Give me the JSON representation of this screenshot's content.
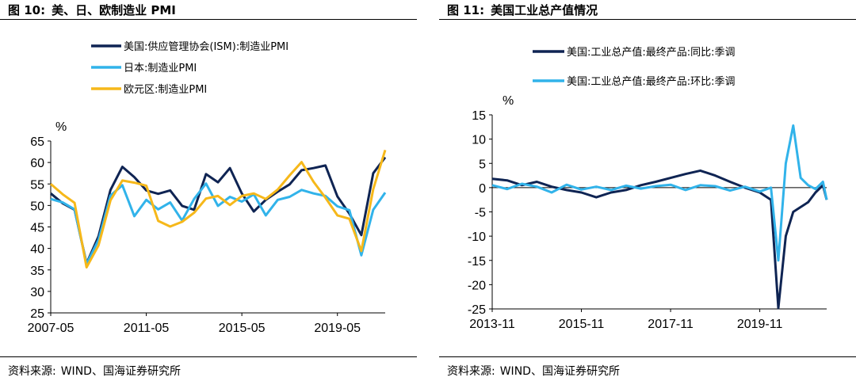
{
  "left": {
    "figure_no": "图 10:",
    "title": "美、日、欧制造业 PMI",
    "source_label": "资料来源:",
    "source_text": "WIND、国海证券研究所"
  },
  "right": {
    "figure_no": "图 11:",
    "title": "美国工业总产值情况",
    "source_label": "资料来源:",
    "source_text": "WIND、国海证券研究所"
  },
  "chart_data": [
    {
      "type": "line",
      "title": "美、日、欧制造业 PMI",
      "ylabel": "%",
      "ylim": [
        25,
        65
      ],
      "yticks": [
        25,
        30,
        35,
        40,
        45,
        50,
        55,
        60,
        65
      ],
      "xlim": [
        "2007-05",
        "2021-05"
      ],
      "xtick_labels": [
        "2007-05",
        "2011-05",
        "2015-05",
        "2019-05"
      ],
      "colors": {
        "us": "#0f2453",
        "japan": "#31b3ea",
        "euro": "#f6b81a",
        "axis": "#000000"
      },
      "legend": "top-left",
      "grid": false,
      "series": [
        {
          "key": "us",
          "name": "美国:供应管理协会(ISM):制造业PMI",
          "color": "#0f2453",
          "x": [
            "2007-05",
            "2007-11",
            "2008-05",
            "2008-11",
            "2009-05",
            "2009-11",
            "2010-05",
            "2010-11",
            "2011-05",
            "2011-11",
            "2012-05",
            "2012-11",
            "2013-05",
            "2013-11",
            "2014-05",
            "2014-11",
            "2015-05",
            "2015-11",
            "2016-05",
            "2016-11",
            "2017-05",
            "2017-11",
            "2018-05",
            "2018-11",
            "2019-05",
            "2019-11",
            "2020-05",
            "2020-11",
            "2021-05"
          ],
          "values": [
            52.8,
            50.5,
            49.0,
            36.5,
            42.8,
            53.6,
            59.0,
            56.6,
            53.5,
            52.7,
            53.5,
            49.9,
            49.0,
            57.3,
            55.4,
            58.7,
            52.8,
            48.6,
            51.3,
            53.2,
            54.9,
            58.2,
            58.7,
            59.3,
            52.1,
            48.1,
            43.1,
            57.5,
            61.2
          ]
        },
        {
          "key": "japan",
          "name": "日本:制造业PMI",
          "color": "#31b3ea",
          "x": [
            "2007-05",
            "2007-11",
            "2008-05",
            "2008-11",
            "2009-05",
            "2009-11",
            "2010-05",
            "2010-11",
            "2011-05",
            "2011-11",
            "2012-05",
            "2012-11",
            "2013-05",
            "2013-11",
            "2014-05",
            "2014-11",
            "2015-05",
            "2015-11",
            "2016-05",
            "2016-11",
            "2017-05",
            "2017-11",
            "2018-05",
            "2018-11",
            "2019-05",
            "2019-11",
            "2020-05",
            "2020-11",
            "2021-05"
          ],
          "values": [
            51.5,
            50.7,
            49.1,
            36.4,
            42.0,
            52.3,
            54.7,
            47.5,
            51.3,
            49.1,
            50.7,
            46.5,
            51.5,
            55.1,
            49.9,
            52.0,
            50.9,
            52.6,
            47.7,
            51.3,
            52.0,
            53.6,
            52.8,
            52.2,
            49.8,
            48.9,
            38.4,
            49.0,
            53.0
          ]
        },
        {
          "key": "euro",
          "name": "欧元区:制造业PMI",
          "color": "#f6b81a",
          "x": [
            "2007-05",
            "2007-11",
            "2008-05",
            "2008-11",
            "2009-05",
            "2009-11",
            "2010-05",
            "2010-11",
            "2011-05",
            "2011-11",
            "2012-05",
            "2012-11",
            "2013-05",
            "2013-11",
            "2014-05",
            "2014-11",
            "2015-05",
            "2015-11",
            "2016-05",
            "2016-11",
            "2017-05",
            "2017-11",
            "2018-05",
            "2018-11",
            "2019-05",
            "2019-11",
            "2020-05",
            "2020-11",
            "2021-05"
          ],
          "values": [
            55.0,
            52.6,
            50.6,
            35.6,
            40.7,
            51.2,
            55.8,
            55.3,
            54.6,
            46.4,
            45.1,
            46.2,
            48.3,
            51.6,
            52.2,
            50.1,
            52.2,
            52.8,
            51.5,
            53.7,
            57.0,
            60.1,
            55.5,
            51.8,
            47.7,
            46.9,
            39.4,
            53.8,
            62.9
          ]
        }
      ]
    },
    {
      "type": "line",
      "title": "美国工业总产值情况",
      "ylabel": "%",
      "ylim": [
        -25,
        15
      ],
      "yticks": [
        -25,
        -20,
        -15,
        -10,
        -5,
        0,
        5,
        10,
        15
      ],
      "xlim": [
        "2013-11",
        "2021-05"
      ],
      "xtick_labels": [
        "2013-11",
        "2015-11",
        "2017-11",
        "2019-11"
      ],
      "colors": {
        "yoy": "#0f2453",
        "mom": "#31b3ea",
        "axis": "#000000"
      },
      "legend": "top-right",
      "grid": false,
      "series": [
        {
          "key": "yoy",
          "name": "美国:工业总产值:最终产品:同比:季调",
          "color": "#0f2453",
          "x": [
            "2013-11",
            "2014-03",
            "2014-07",
            "2014-11",
            "2015-03",
            "2015-07",
            "2015-11",
            "2016-03",
            "2016-07",
            "2016-11",
            "2017-03",
            "2017-07",
            "2017-11",
            "2018-03",
            "2018-07",
            "2018-11",
            "2019-03",
            "2019-07",
            "2019-11",
            "2020-02",
            "2020-04",
            "2020-06",
            "2020-08",
            "2020-10",
            "2020-12",
            "2021-02",
            "2021-04",
            "2021-05"
          ],
          "values": [
            1.8,
            1.5,
            0.5,
            1.2,
            0.2,
            -0.5,
            -1.0,
            -2.0,
            -1.0,
            -0.5,
            0.5,
            1.2,
            2.0,
            2.8,
            3.5,
            2.5,
            1.2,
            0.0,
            -1.0,
            -2.5,
            -24.8,
            -10.0,
            -5.0,
            -4.0,
            -3.0,
            -1.0,
            0.5,
            -2.5
          ]
        },
        {
          "key": "mom",
          "name": "美国:工业总产值:最终产品:环比:季调",
          "color": "#31b3ea",
          "x": [
            "2013-11",
            "2014-03",
            "2014-07",
            "2014-11",
            "2015-03",
            "2015-07",
            "2015-11",
            "2016-03",
            "2016-07",
            "2016-11",
            "2017-03",
            "2017-07",
            "2017-11",
            "2018-03",
            "2018-07",
            "2018-11",
            "2019-03",
            "2019-07",
            "2019-11",
            "2020-02",
            "2020-04",
            "2020-06",
            "2020-08",
            "2020-10",
            "2020-12",
            "2021-02",
            "2021-04",
            "2021-05"
          ],
          "values": [
            0.5,
            -0.3,
            0.8,
            0.2,
            -1.0,
            0.6,
            -0.4,
            0.2,
            -0.5,
            0.4,
            -0.2,
            0.3,
            0.6,
            -0.5,
            0.5,
            0.3,
            -0.6,
            0.2,
            -0.8,
            0.0,
            -15.0,
            5.0,
            12.8,
            2.0,
            0.5,
            -0.3,
            1.2,
            -2.5
          ]
        }
      ]
    }
  ]
}
